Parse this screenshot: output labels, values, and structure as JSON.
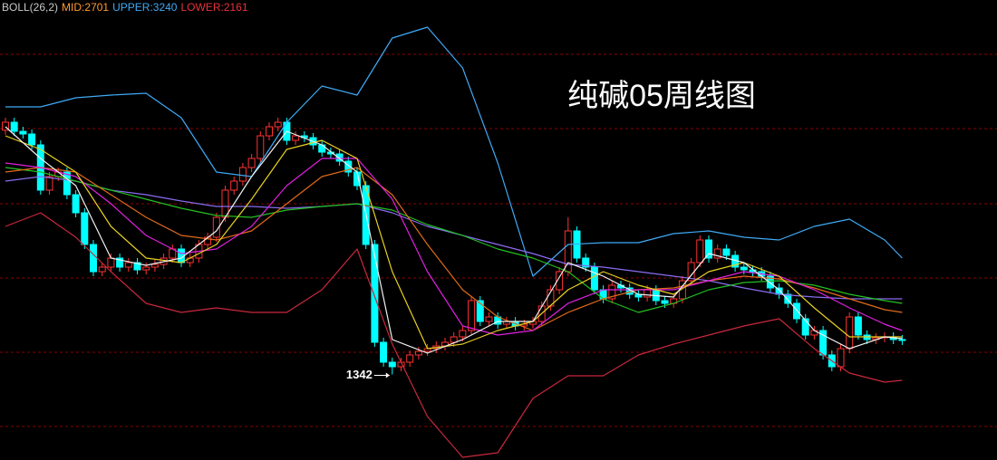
{
  "chart_data": {
    "type": "candlestick",
    "title": "纯碱05周线图",
    "indicator": {
      "name": "BOLL(26,2)",
      "name_color": "#c8c8c8",
      "readouts": [
        {
          "label": "MID:",
          "value": 2701,
          "color": "#ff9a2e"
        },
        {
          "label": "UPPER:",
          "value": 3240,
          "color": "#3fa9f5"
        },
        {
          "label": "LOWER:",
          "value": 2161,
          "color": "#e8323c"
        }
      ]
    },
    "ylim": [
      586,
      4650
    ],
    "up_color": "#ff3232",
    "down_color": "#00ffff",
    "open": [
      3500,
      3570,
      3490,
      3466,
      3370,
      2970,
      3090,
      3130,
      2930,
      2770,
      2490,
      2250,
      2290,
      2370,
      2290,
      2330,
      2266,
      2290,
      2314,
      2370,
      2450,
      2330,
      2370,
      2490,
      2554,
      2730,
      2970,
      3050,
      3170,
      3250,
      3450,
      3530,
      3570,
      3410,
      3450,
      3434,
      3370,
      3306,
      3290,
      3226,
      3130,
      3010,
      2490,
      1626,
      1450,
      1410,
      1450,
      1514,
      1546,
      1570,
      1594,
      1626,
      1674,
      1730,
      1994,
      1810,
      1850,
      1786,
      1810,
      1770,
      1786,
      1810,
      1946,
      2090,
      2250,
      2610,
      2370,
      2290,
      2090,
      2010,
      2130,
      2106,
      2050,
      2026,
      2090,
      1994,
      1970,
      2010,
      2170,
      2330,
      2530,
      2370,
      2450,
      2394,
      2290,
      2266,
      2250,
      2210,
      2106,
      2050,
      1970,
      1834,
      1690,
      1730,
      1514,
      1410,
      1570,
      1850,
      1690,
      1650,
      1666,
      1674,
      1650
    ],
    "high": [
      3610,
      3610,
      3530,
      3506,
      3410,
      3130,
      3170,
      3170,
      2970,
      2810,
      2530,
      2330,
      2410,
      2410,
      2370,
      2370,
      2330,
      2354,
      2410,
      2490,
      2490,
      2410,
      2530,
      2594,
      2770,
      3010,
      3090,
      3210,
      3290,
      3490,
      3570,
      3610,
      3610,
      3490,
      3490,
      3474,
      3410,
      3346,
      3330,
      3266,
      3170,
      3050,
      2530,
      1666,
      1490,
      1490,
      1554,
      1586,
      1610,
      1634,
      1666,
      1714,
      1770,
      2034,
      2034,
      1890,
      1890,
      1850,
      1850,
      1826,
      1850,
      1986,
      2130,
      2290,
      2730,
      2650,
      2410,
      2330,
      2130,
      2170,
      2170,
      2146,
      2090,
      2130,
      2130,
      2034,
      2050,
      2210,
      2370,
      2570,
      2570,
      2490,
      2490,
      2434,
      2330,
      2306,
      2290,
      2250,
      2146,
      2090,
      2010,
      1874,
      1770,
      1770,
      1554,
      1610,
      1890,
      1890,
      1730,
      1706,
      1714,
      1714,
      1690
    ],
    "low": [
      3460,
      3450,
      3426,
      3330,
      2930,
      2930,
      3050,
      2890,
      2730,
      2450,
      2210,
      2210,
      2250,
      2250,
      2250,
      2226,
      2226,
      2250,
      2274,
      2330,
      2290,
      2290,
      2330,
      2450,
      2514,
      2690,
      2930,
      3010,
      3130,
      3210,
      3410,
      3490,
      3370,
      3370,
      3394,
      3330,
      3266,
      3250,
      3186,
      3090,
      2970,
      2450,
      1586,
      1410,
      1342,
      1370,
      1410,
      1474,
      1506,
      1530,
      1554,
      1586,
      1634,
      1690,
      1770,
      1770,
      1746,
      1746,
      1730,
      1730,
      1746,
      1770,
      1906,
      2050,
      2210,
      2330,
      2250,
      2050,
      1970,
      1970,
      2066,
      2010,
      1986,
      1986,
      1954,
      1930,
      1930,
      1970,
      2130,
      2290,
      2330,
      2330,
      2354,
      2250,
      2226,
      2210,
      2170,
      2066,
      2010,
      1930,
      1794,
      1650,
      1650,
      1474,
      1370,
      1370,
      1530,
      1650,
      1610,
      1610,
      1626,
      1610,
      1602
    ],
    "close": [
      3570,
      3490,
      3466,
      3370,
      2970,
      3090,
      3130,
      2930,
      2770,
      2490,
      2250,
      2290,
      2370,
      2290,
      2330,
      2266,
      2290,
      2314,
      2370,
      2450,
      2330,
      2370,
      2490,
      2554,
      2730,
      2970,
      3050,
      3170,
      3250,
      3450,
      3530,
      3570,
      3410,
      3450,
      3434,
      3370,
      3306,
      3290,
      3226,
      3130,
      3010,
      2490,
      1626,
      1450,
      1410,
      1450,
      1514,
      1546,
      1570,
      1594,
      1626,
      1674,
      1730,
      1994,
      1810,
      1850,
      1786,
      1810,
      1770,
      1786,
      1810,
      1946,
      2090,
      2250,
      2610,
      2370,
      2290,
      2090,
      2010,
      2130,
      2106,
      2050,
      2026,
      2090,
      1994,
      1970,
      2010,
      2170,
      2330,
      2530,
      2370,
      2450,
      2394,
      2290,
      2266,
      2250,
      2210,
      2106,
      2050,
      1970,
      1834,
      1690,
      1730,
      1514,
      1410,
      1570,
      1850,
      1690,
      1650,
      1666,
      1674,
      1650,
      1642
    ],
    "line_x": [
      0,
      4,
      8,
      12,
      16,
      20,
      24,
      28,
      32,
      36,
      40,
      44,
      48,
      52,
      56,
      60,
      64,
      68,
      72,
      76,
      80,
      84,
      88,
      92,
      96,
      100,
      102
    ],
    "series": [
      {
        "color": "#3fa9f5",
        "values": [
          3706,
          3706,
          3786,
          3810,
          3826,
          3610,
          3130,
          3090,
          3570,
          3890,
          3810,
          4314,
          4410,
          4050,
          3210,
          2210,
          2490,
          2506,
          2506,
          2586,
          2610,
          2554,
          2530,
          2650,
          2714,
          2530,
          2370
        ]
      },
      {
        "color": "#c8283c",
        "values": [
          2650,
          2770,
          2554,
          2250,
          1970,
          1890,
          1930,
          1890,
          1890,
          2090,
          2450,
          1610,
          970,
          610,
          650,
          1130,
          1330,
          1330,
          1514,
          1610,
          1690,
          1770,
          1834,
          1570,
          1354,
          1274,
          1290
        ]
      },
      {
        "color": "#8a6cf0",
        "values": [
          3050,
          3090,
          3050,
          2970,
          2930,
          2874,
          2826,
          2826,
          2810,
          2826,
          2850,
          2770,
          2650,
          2570,
          2490,
          2410,
          2314,
          2290,
          2250,
          2210,
          2170,
          2106,
          2050,
          2026,
          2010,
          2010,
          2010
        ]
      },
      {
        "color": "#22c022",
        "values": [
          3170,
          3130,
          3050,
          2970,
          2890,
          2810,
          2746,
          2730,
          2794,
          2826,
          2850,
          2794,
          2666,
          2570,
          2450,
          2370,
          2250,
          2010,
          1890,
          1970,
          2090,
          2154,
          2170,
          2130,
          2050,
          1994,
          1970
        ]
      },
      {
        "color": "#e06a1a",
        "values": [
          3130,
          3170,
          3130,
          2930,
          2730,
          2570,
          2530,
          2610,
          2850,
          3090,
          3170,
          2930,
          2490,
          2090,
          1850,
          1730,
          1890,
          2010,
          2090,
          2106,
          2170,
          2210,
          2186,
          2106,
          2010,
          1914,
          1890
        ]
      },
      {
        "color": "#e020e0",
        "values": [
          3210,
          3170,
          3090,
          2850,
          2570,
          2410,
          2450,
          2650,
          3010,
          3250,
          3250,
          2890,
          2250,
          1770,
          1690,
          1730,
          1970,
          2090,
          2090,
          2090,
          2170,
          2250,
          2210,
          2090,
          1930,
          1786,
          1730
        ]
      },
      {
        "color": "#e8d020",
        "values": [
          3450,
          3330,
          3130,
          2650,
          2370,
          2330,
          2490,
          2890,
          3330,
          3410,
          3250,
          2250,
          1570,
          1610,
          1730,
          1810,
          2090,
          2250,
          2130,
          2050,
          2250,
          2330,
          2210,
          1930,
          1674,
          1674,
          1674
        ]
      },
      {
        "color": "#f0f0f0",
        "values": [
          3530,
          3250,
          3010,
          2370,
          2306,
          2370,
          2610,
          3090,
          3490,
          3370,
          3130,
          1650,
          1530,
          1650,
          1810,
          1810,
          2330,
          2210,
          2050,
          2026,
          2410,
          2330,
          2090,
          1730,
          1570,
          1674,
          1658
        ]
      }
    ]
  }
}
